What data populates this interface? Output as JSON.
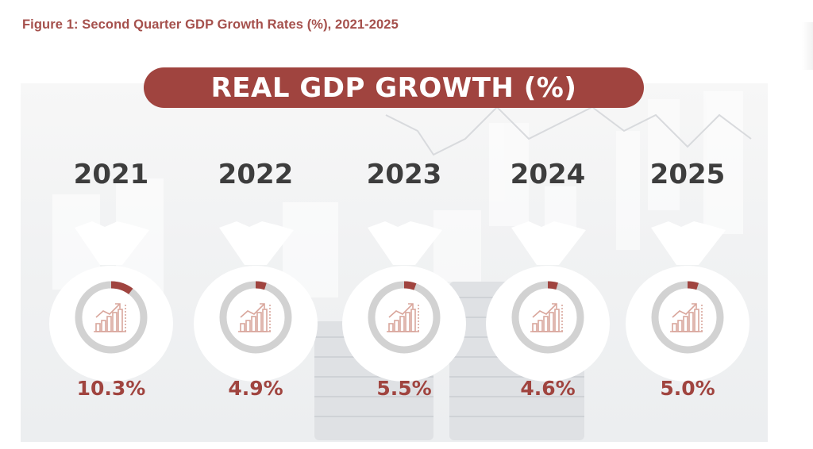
{
  "figure_title": "Figure 1: Second Quarter GDP Growth Rates (%), 2021-2025",
  "colors": {
    "accent": "#a0443f",
    "ring": "#d2d2d2",
    "icon": "#d9a69c",
    "bag": "#ffffff",
    "year_text": "#3d3d3d"
  },
  "chart_data": {
    "type": "bar",
    "title": "REAL GDP GROWTH (%)",
    "categories": [
      "2021",
      "2022",
      "2023",
      "2024",
      "2025"
    ],
    "values": [
      10.3,
      4.9,
      5.5,
      4.6,
      5.0
    ],
    "value_labels": [
      "10.3%",
      "4.9%",
      "5.5%",
      "4.6%",
      "5.0%"
    ],
    "xlabel": "",
    "ylabel": "",
    "ylim": [
      0,
      100
    ],
    "icon": "growth-chart-icon"
  }
}
